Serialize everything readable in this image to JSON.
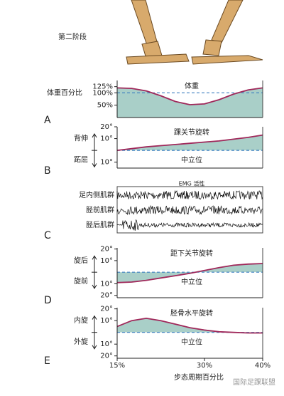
{
  "header": {
    "phase": "第二阶段"
  },
  "chart_data": [
    {
      "type": "area",
      "panel": "A",
      "title": "体重",
      "ylabel": "体重百分比",
      "x": [
        15,
        17.5,
        20,
        22.5,
        25,
        27.5,
        30,
        32.5,
        35,
        37.5,
        40
      ],
      "values": [
        120,
        118,
        108,
        88,
        65,
        52,
        55,
        72,
        95,
        112,
        120
      ],
      "xlim": [
        15,
        40
      ],
      "ylim": [
        0,
        150
      ],
      "yticks": [
        {
          "value": 125,
          "label": "125%"
        },
        {
          "value": 100,
          "label": "100%"
        },
        {
          "value": 50,
          "label": "50%"
        }
      ],
      "reference": 100,
      "fill_to": "axis",
      "color": "#a0285a",
      "fill_color": "#a9cfc8",
      "reference_color": "#3a7fc0"
    },
    {
      "type": "area",
      "panel": "B",
      "title": "踝关节旋转",
      "up_label": "背伸",
      "down_label": "跖屈",
      "reference_label": "中立位",
      "x": [
        15,
        17.5,
        20,
        22.5,
        25,
        27.5,
        30,
        32.5,
        35,
        37.5,
        40
      ],
      "values": [
        0,
        1.5,
        3,
        4,
        5,
        6,
        7,
        8,
        9.5,
        11,
        13
      ],
      "xlim": [
        15,
        40
      ],
      "ylim": [
        -15,
        20
      ],
      "yticks": [
        {
          "value": 20,
          "label": "20°"
        },
        {
          "value": 10,
          "label": "10°"
        },
        {
          "value": -10,
          "label": "10°"
        }
      ],
      "reference": 0,
      "fill_to": "reference",
      "color": "#a0285a",
      "fill_color": "#a9cfc8",
      "reference_color": "#3a7fc0"
    },
    {
      "type": "emg",
      "panel": "C",
      "title": "EMG 活性",
      "color": "#111111",
      "series": [
        {
          "name": "足内侧肌群"
        },
        {
          "name": "胫前肌群"
        },
        {
          "name": "胫后肌群"
        }
      ]
    },
    {
      "type": "area",
      "panel": "D",
      "title": "距下关节旋转",
      "up_label": "旋后",
      "down_label": "旋前",
      "reference_label": "中立位",
      "x": [
        15,
        17.5,
        20,
        22.5,
        25,
        27.5,
        30,
        32.5,
        35,
        37.5,
        40
      ],
      "values": [
        -9,
        -8.5,
        -7,
        -5,
        -3,
        -1,
        1.5,
        4,
        6,
        7,
        7.5
      ],
      "xlim": [
        15,
        40
      ],
      "ylim": [
        -22,
        21
      ],
      "yticks": [
        {
          "value": 20,
          "label": "20°"
        },
        {
          "value": 10,
          "label": "10°"
        },
        {
          "value": -10,
          "label": "10°"
        },
        {
          "value": -20,
          "label": "20°"
        }
      ],
      "reference": 0,
      "fill_to": "reference",
      "color": "#a0285a",
      "fill_color": "#a9cfc8",
      "reference_color": "#3a7fc0"
    },
    {
      "type": "area",
      "panel": "E",
      "title": "胫骨水平旋转",
      "up_label": "内旋",
      "down_label": "外旋",
      "reference_label": "中立位",
      "x": [
        15,
        17.5,
        20,
        22.5,
        25,
        27.5,
        30,
        32.5,
        35,
        37.5,
        40
      ],
      "values": [
        5,
        10,
        12,
        10,
        7,
        4,
        2,
        0.5,
        0,
        -0.5,
        -0.5
      ],
      "xlim": [
        15,
        40
      ],
      "ylim": [
        -22,
        21
      ],
      "yticks": [
        {
          "value": 20,
          "label": "20°"
        },
        {
          "value": 10,
          "label": "10°"
        },
        {
          "value": -10,
          "label": "10°"
        },
        {
          "value": -20,
          "label": "20°"
        }
      ],
      "xticks": [
        {
          "value": 15,
          "label": "15%"
        },
        {
          "value": 30,
          "label": "30%"
        },
        {
          "value": 40,
          "label": "40%"
        }
      ],
      "xlabel": "步态周期百分比",
      "reference": 0,
      "fill_to": "reference",
      "color": "#a0285a",
      "fill_color": "#a9cfc8",
      "reference_color": "#3a7fc0"
    }
  ],
  "watermark": "国际足踝联盟"
}
